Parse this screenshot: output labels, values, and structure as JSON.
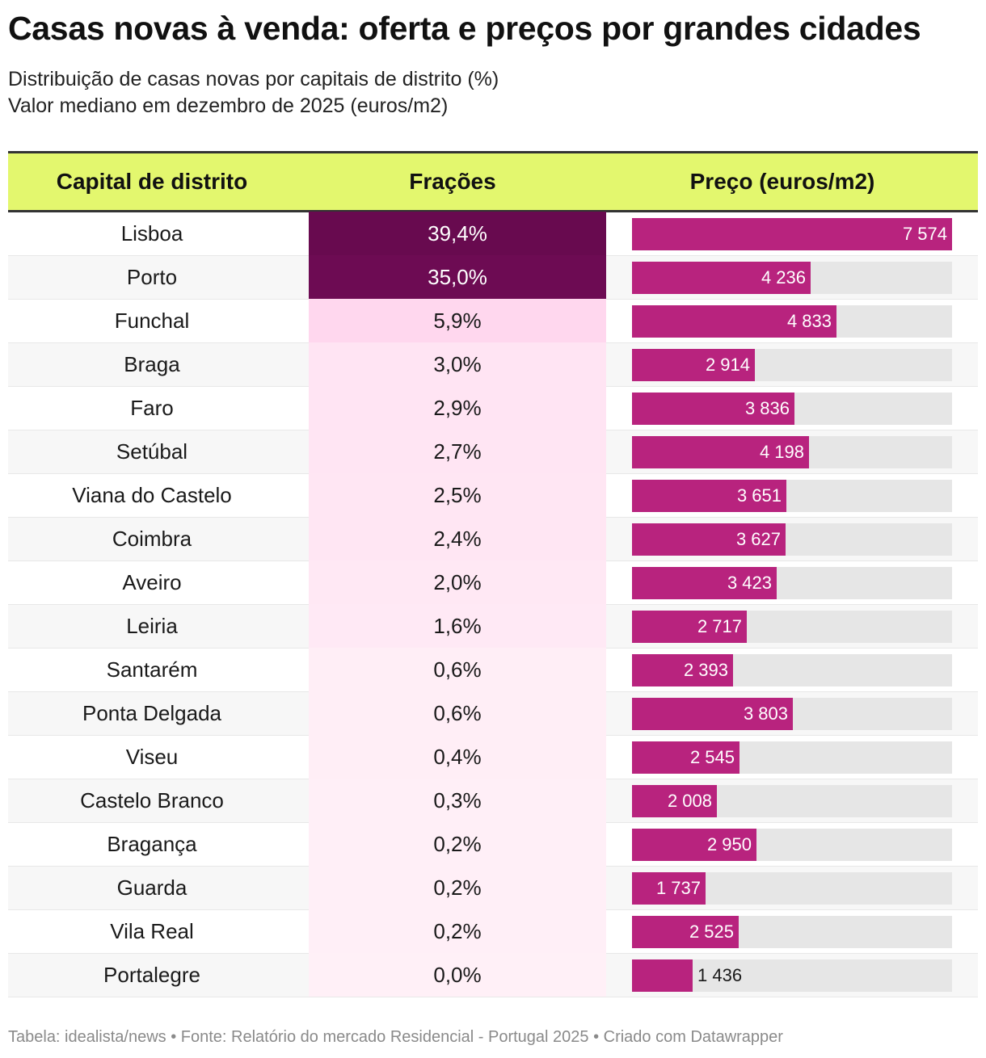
{
  "title": "Casas novas à venda: oferta e preços por grandes cidades",
  "subtitle_line1": "Distribuição de casas novas por capitais de distrito (%)",
  "subtitle_line2": "Valor mediano em dezembro de 2025 (euros/m2)",
  "footer": "Tabela: idealista/news • Fonte: Relatório do mercado Residencial - Portugal 2025 • Criado com Datawrapper",
  "colors": {
    "header_bg": "#e3f76e",
    "bar": "#b8237e",
    "bar_track": "#e6e6e6",
    "frac_dark": "#680a4f",
    "frac_light": "#fff0f7"
  },
  "chart_data": {
    "type": "table",
    "columns": [
      "Capital de distrito",
      "Frações",
      "Preço (euros/m2)"
    ],
    "price_max": 7574,
    "rows": [
      {
        "city": "Lisboa",
        "frac": "39,4%",
        "frac_value": 39.4,
        "price": 7574,
        "price_label": "7 574"
      },
      {
        "city": "Porto",
        "frac": "35,0%",
        "frac_value": 35.0,
        "price": 4236,
        "price_label": "4 236"
      },
      {
        "city": "Funchal",
        "frac": "5,9%",
        "frac_value": 5.9,
        "price": 4833,
        "price_label": "4 833"
      },
      {
        "city": "Braga",
        "frac": "3,0%",
        "frac_value": 3.0,
        "price": 2914,
        "price_label": "2 914"
      },
      {
        "city": "Faro",
        "frac": "2,9%",
        "frac_value": 2.9,
        "price": 3836,
        "price_label": "3 836"
      },
      {
        "city": "Setúbal",
        "frac": "2,7%",
        "frac_value": 2.7,
        "price": 4198,
        "price_label": "4 198"
      },
      {
        "city": "Viana do Castelo",
        "frac": "2,5%",
        "frac_value": 2.5,
        "price": 3651,
        "price_label": "3 651"
      },
      {
        "city": "Coimbra",
        "frac": "2,4%",
        "frac_value": 2.4,
        "price": 3627,
        "price_label": "3 627"
      },
      {
        "city": "Aveiro",
        "frac": "2,0%",
        "frac_value": 2.0,
        "price": 3423,
        "price_label": "3 423"
      },
      {
        "city": "Leiria",
        "frac": "1,6%",
        "frac_value": 1.6,
        "price": 2717,
        "price_label": "2 717"
      },
      {
        "city": "Santarém",
        "frac": "0,6%",
        "frac_value": 0.6,
        "price": 2393,
        "price_label": "2 393"
      },
      {
        "city": "Ponta Delgada",
        "frac": "0,6%",
        "frac_value": 0.6,
        "price": 3803,
        "price_label": "3 803"
      },
      {
        "city": "Viseu",
        "frac": "0,4%",
        "frac_value": 0.4,
        "price": 2545,
        "price_label": "2 545"
      },
      {
        "city": "Castelo Branco",
        "frac": "0,3%",
        "frac_value": 0.3,
        "price": 2008,
        "price_label": "2 008"
      },
      {
        "city": "Bragança",
        "frac": "0,2%",
        "frac_value": 0.2,
        "price": 2950,
        "price_label": "2 950"
      },
      {
        "city": "Guarda",
        "frac": "0,2%",
        "frac_value": 0.2,
        "price": 1737,
        "price_label": "1 737"
      },
      {
        "city": "Vila Real",
        "frac": "0,2%",
        "frac_value": 0.2,
        "price": 2525,
        "price_label": "2 525"
      },
      {
        "city": "Portalegre",
        "frac": "0,0%",
        "frac_value": 0.0,
        "price": 1436,
        "price_label": "1 436"
      }
    ]
  }
}
